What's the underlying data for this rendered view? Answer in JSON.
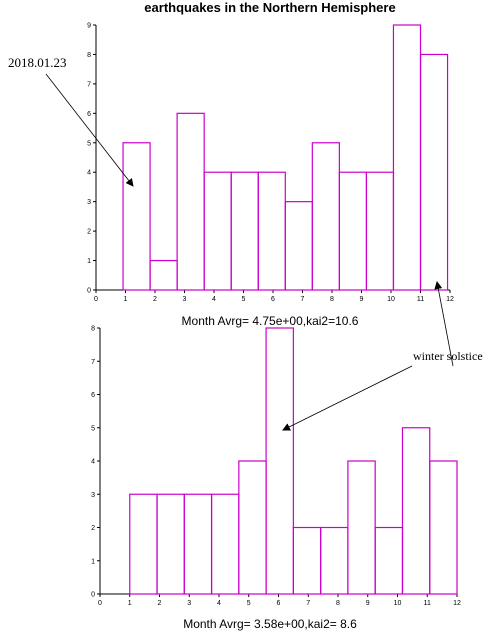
{
  "colors": {
    "bar": "#cc00cc",
    "axis": "#000000"
  },
  "chart_data": [
    {
      "type": "bar",
      "title": "earthquakes in the Northern Hemisphere",
      "xlabel": "Month     Avrg=  4.75e+00,kai2=10.6",
      "xlim": [
        0,
        12
      ],
      "ylim": [
        0,
        9
      ],
      "xticks": [
        0,
        1,
        2,
        3,
        4,
        5,
        6,
        7,
        8,
        9,
        10,
        11,
        12
      ],
      "yticks": [
        0,
        1,
        2,
        3,
        4,
        5,
        6,
        7,
        8,
        9
      ],
      "bin_edges": [
        0.917,
        1.833,
        2.75,
        3.667,
        4.583,
        5.5,
        6.417,
        7.333,
        8.25,
        9.167,
        10.083,
        11.0,
        11.917
      ],
      "values": [
        5,
        1,
        6,
        4,
        4,
        4,
        3,
        5,
        4,
        4,
        9,
        8
      ],
      "annotations": [
        {
          "text": "2018.01.23",
          "x": 1.25,
          "y": 3.5
        },
        {
          "text": "winter solstice",
          "x": 11.4,
          "y": 0.4
        }
      ]
    },
    {
      "type": "bar",
      "title": "",
      "xlabel": "Month     Avrg=  3.58e+00,kai2= 8.6",
      "xlim": [
        0,
        12
      ],
      "ylim": [
        0,
        8
      ],
      "xticks": [
        0,
        1,
        2,
        3,
        4,
        5,
        6,
        7,
        8,
        9,
        10,
        11,
        12
      ],
      "yticks": [
        0,
        1,
        2,
        3,
        4,
        5,
        6,
        7,
        8
      ],
      "bin_edges": [
        1.0,
        1.917,
        2.833,
        3.75,
        4.667,
        5.583,
        6.5,
        7.417,
        8.333,
        9.25,
        10.167,
        11.083,
        12.0
      ],
      "values": [
        3,
        3,
        3,
        3,
        4,
        8,
        2,
        2,
        4,
        2,
        5,
        4
      ],
      "annotations": [
        {
          "text": "winter solstice",
          "x": 6.3,
          "y": 5
        }
      ]
    }
  ]
}
